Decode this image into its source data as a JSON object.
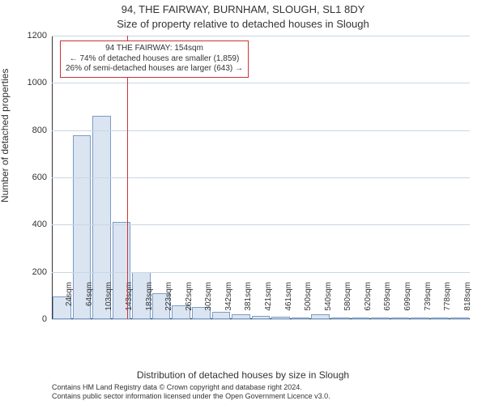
{
  "title": "94, THE FAIRWAY, BURNHAM, SLOUGH, SL1 8DY",
  "subtitle": "Size of property relative to detached houses in Slough",
  "ylabel": "Number of detached properties",
  "xlabel": "Distribution of detached houses by size in Slough",
  "attribution_line1": "Contains HM Land Registry data © Crown copyright and database right 2024.",
  "attribution_line2": "Contains public sector information licensed under the Open Government Licence v3.0.",
  "chart": {
    "type": "histogram",
    "bar_fill": "#dbe5f1",
    "bar_stroke": "#7a9cc6",
    "grid_color": "#c9d6e4",
    "axis_color": "#333333",
    "background_color": "#ffffff",
    "ylim": [
      0,
      1200
    ],
    "ytick_step": 200,
    "yticks": [
      0,
      200,
      400,
      600,
      800,
      1000,
      1200
    ],
    "categories": [
      "24sqm",
      "64sqm",
      "103sqm",
      "143sqm",
      "183sqm",
      "223sqm",
      "262sqm",
      "302sqm",
      "342sqm",
      "381sqm",
      "421sqm",
      "461sqm",
      "500sqm",
      "540sqm",
      "580sqm",
      "620sqm",
      "659sqm",
      "699sqm",
      "739sqm",
      "778sqm",
      "818sqm"
    ],
    "values": [
      95,
      780,
      860,
      410,
      200,
      110,
      60,
      50,
      30,
      20,
      15,
      10,
      5,
      20,
      5,
      5,
      5,
      3,
      3,
      2,
      5
    ],
    "bar_width_ratio": 0.92,
    "title_fontsize": 13,
    "label_fontsize": 12,
    "tick_fontsize": 11
  },
  "annotation": {
    "line1": "94 THE FAIRWAY: 154sqm",
    "line2": "← 74% of detached houses are smaller (1,859)",
    "line3": "26% of semi-detached houses are larger (643) →",
    "box_border_color": "#cc3333",
    "marker_value_sqm": 154,
    "marker_color": "#cc3333"
  }
}
